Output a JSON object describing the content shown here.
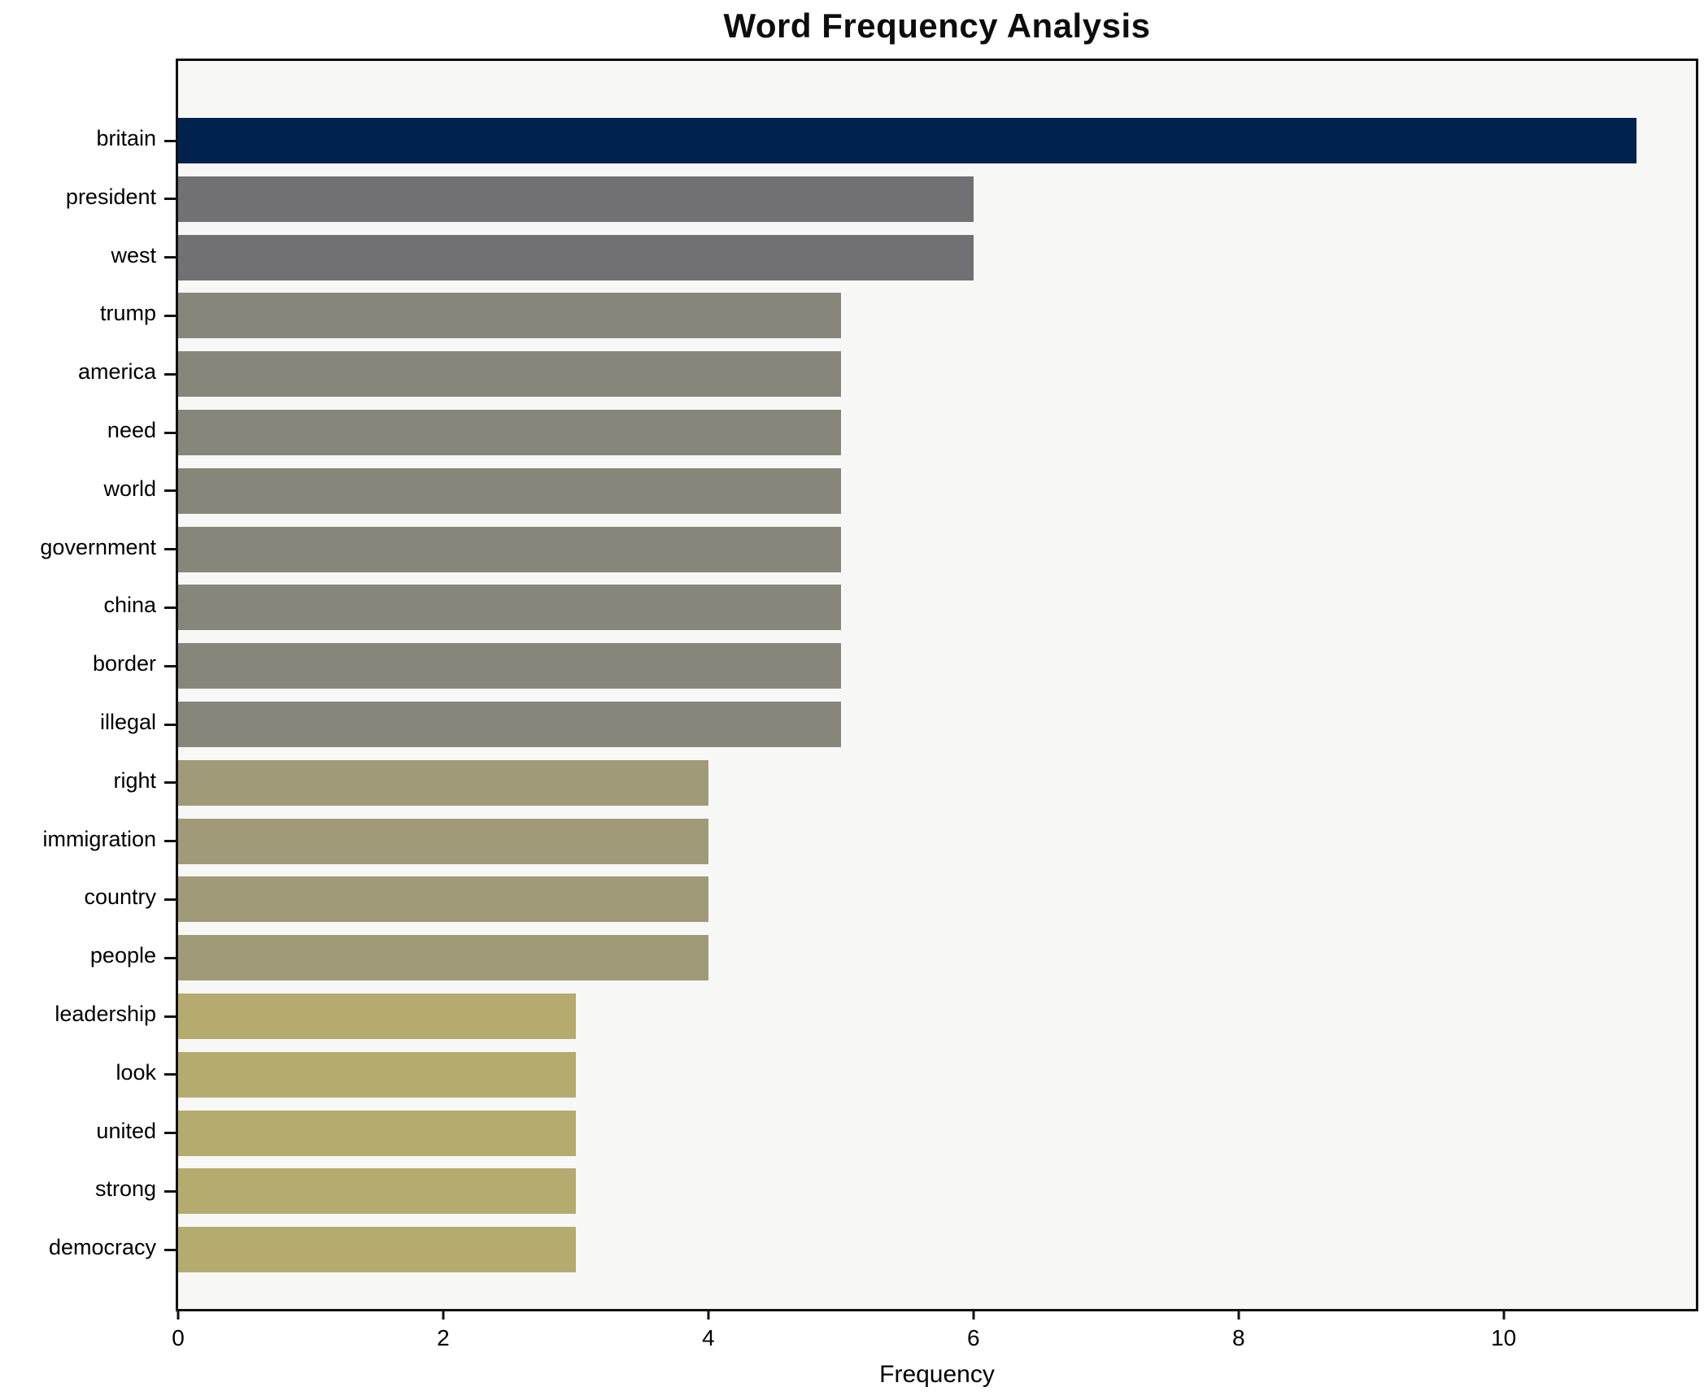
{
  "title": "Word Frequency Analysis",
  "chart_data": {
    "type": "bar",
    "orientation": "horizontal",
    "title": "Word Frequency Analysis",
    "xlabel": "Frequency",
    "ylabel": "",
    "categories": [
      "britain",
      "president",
      "west",
      "trump",
      "america",
      "need",
      "world",
      "government",
      "china",
      "border",
      "illegal",
      "right",
      "immigration",
      "country",
      "people",
      "leadership",
      "look",
      "united",
      "strong",
      "democracy"
    ],
    "values": [
      11,
      6,
      6,
      5,
      5,
      5,
      5,
      5,
      5,
      5,
      5,
      4,
      4,
      4,
      4,
      3,
      3,
      3,
      3,
      3
    ],
    "bar_colors": [
      "#02224e",
      "#717174",
      "#717174",
      "#87867a",
      "#87867a",
      "#87867a",
      "#87867a",
      "#87867a",
      "#87867a",
      "#87867a",
      "#87867a",
      "#a19a78",
      "#a19a78",
      "#a19a78",
      "#a19a78",
      "#b5ab6e",
      "#b5ab6e",
      "#b5ab6e",
      "#b5ab6e",
      "#b5ab6e"
    ],
    "xlim": [
      0,
      11.45
    ],
    "xticks": [
      0,
      2,
      4,
      6,
      8,
      10
    ],
    "grid": false,
    "legend": "none",
    "plot_bg_color": "#f7f7f5",
    "figure_bg_color": "#ffffff",
    "spine_color": "#111111"
  }
}
